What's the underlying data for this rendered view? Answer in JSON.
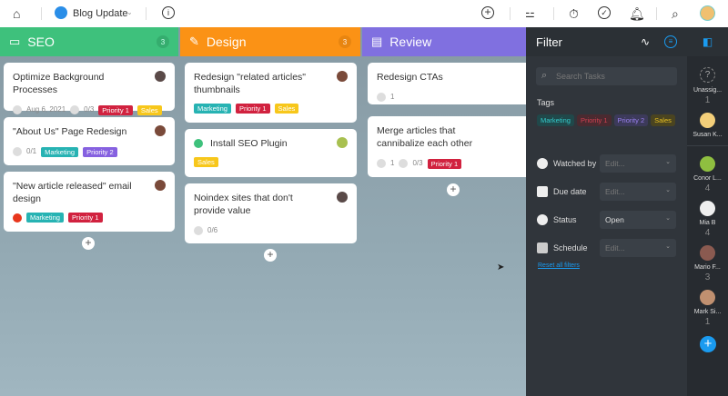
{
  "topbar": {
    "project": "Blog Update",
    "icons": [
      "home-icon",
      "project-emoji-icon",
      "chevron-down-icon",
      "info-icon",
      "add-icon",
      "schedule-icon",
      "timer-icon",
      "check-icon",
      "bell-icon",
      "search-icon",
      "user-avatar"
    ]
  },
  "columns": [
    {
      "name": "SEO",
      "count": "3",
      "color": "#3ec17c",
      "cards": [
        {
          "title": "Optimize Background Processes",
          "date": "Aug 6, 2021",
          "checklist": "0/3",
          "tags": [
            "Priority 1",
            "Sales"
          ]
        },
        {
          "title": "\"About Us\" Page Redesign",
          "checklist": "0/1",
          "tags": [
            "Marketing",
            "Priority 2"
          ]
        },
        {
          "title": "\"New article released\" email design",
          "tags": [
            "Marketing",
            "Priority 1"
          ]
        }
      ]
    },
    {
      "name": "Design",
      "count": "3",
      "color": "#fb9215",
      "cards": [
        {
          "title": "Redesign \"related articles\" thumbnails",
          "tags": [
            "Marketing",
            "Priority 1",
            "Sales"
          ]
        },
        {
          "title": "Install SEO Plugin",
          "tags": [
            "Sales"
          ]
        },
        {
          "title": "Noindex sites that don't provide value",
          "checklist": "0/6"
        }
      ]
    },
    {
      "name": "Review",
      "color": "#8070e0",
      "cards": [
        {
          "title": "Redesign CTAs",
          "comments": "1"
        },
        {
          "title": "Merge articles that cannibalize each other",
          "comments": "1",
          "checklist": "0/3",
          "tags": [
            "Priority 1"
          ]
        }
      ]
    }
  ],
  "filter": {
    "title": "Filter",
    "search_placeholder": "Search Tasks",
    "tags_label": "Tags",
    "tags": [
      "Marketing",
      "Priority 1",
      "Priority 2",
      "Sales"
    ],
    "rows": [
      {
        "label": "Watched by",
        "value": "Edit..."
      },
      {
        "label": "Due date",
        "value": "Edit..."
      },
      {
        "label": "Status",
        "value": "Open"
      },
      {
        "label": "Schedule",
        "value": "Edit..."
      }
    ],
    "reset": "Reset all filters"
  },
  "rail": {
    "users": [
      {
        "name": "Unassig...",
        "count": "1"
      },
      {
        "name": "Susan K..."
      },
      {
        "name": "Conor L...",
        "count": "4"
      },
      {
        "name": "Mia B",
        "count": "4"
      },
      {
        "name": "Mario F...",
        "count": "3"
      },
      {
        "name": "Mark Si...",
        "count": "1"
      }
    ]
  },
  "colors": {
    "accent": "#1a9bf0",
    "panel": "#30353b"
  }
}
